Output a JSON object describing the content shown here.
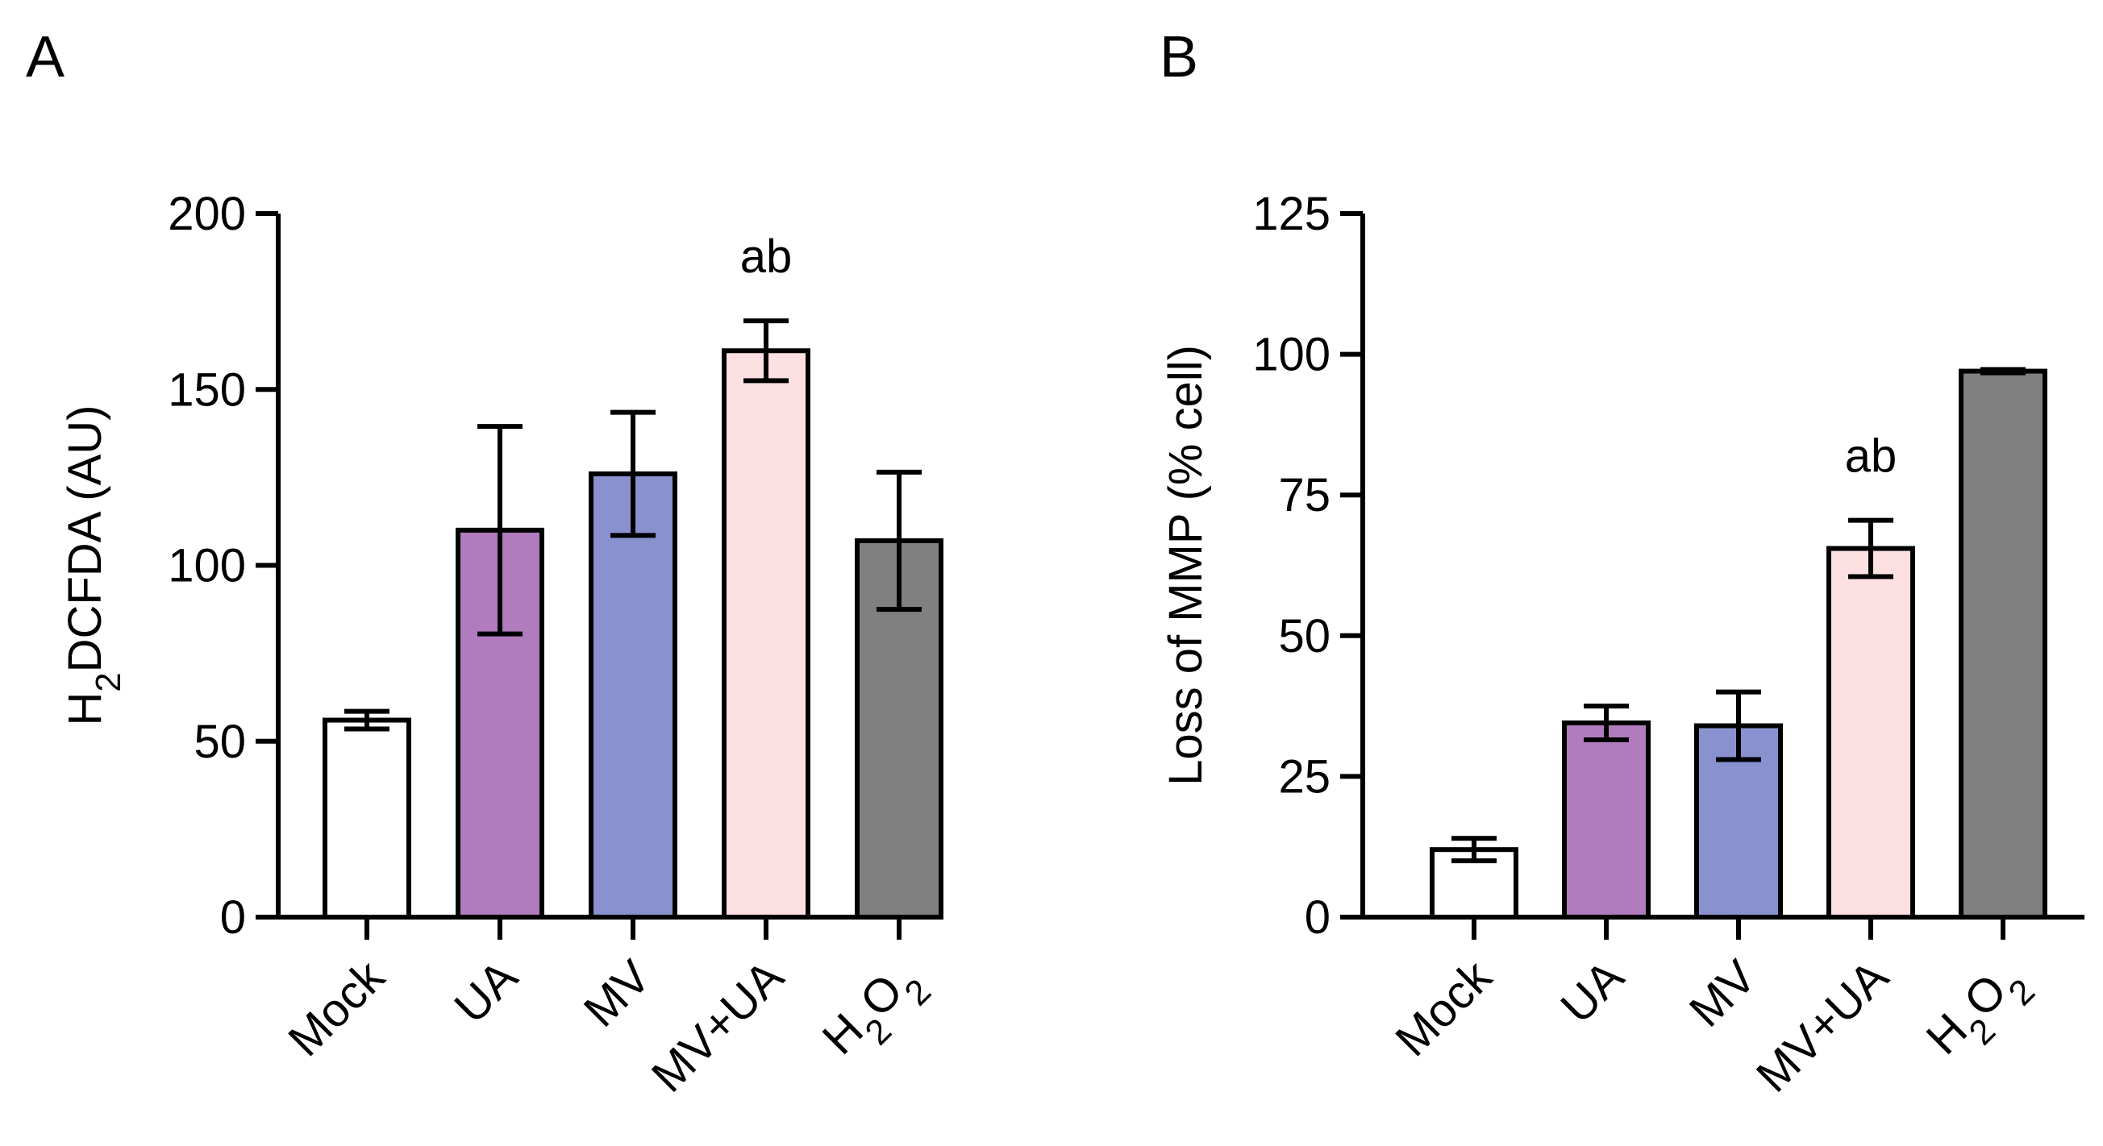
{
  "colors": {
    "axis": "#000000",
    "bar_edge": "#000000"
  },
  "chart_data": [
    {
      "panel_label": "A",
      "type": "bar",
      "categories": [
        "Mock",
        "UA",
        "MV",
        "MV+UA",
        "H2O2"
      ],
      "ylabel": "H2DCFDA (AU)",
      "ylim": [
        0,
        200
      ],
      "yticks": [
        0,
        50,
        100,
        150,
        200
      ],
      "values": [
        56,
        110,
        126,
        161,
        107
      ],
      "errors": [
        2.5,
        29.5,
        17.5,
        8.5,
        19.5
      ],
      "bar_colors": [
        "#ffffff",
        "#b07cbd",
        "#8a91cf",
        "#fde0e2",
        "#808080"
      ],
      "annotations": [
        {
          "category": "MV+UA",
          "text": "ab"
        }
      ]
    },
    {
      "panel_label": "B",
      "type": "bar",
      "categories": [
        "Mock",
        "UA",
        "MV",
        "MV+UA",
        "H2O2"
      ],
      "ylabel": "Loss of MMP (% cell)",
      "ylim": [
        0,
        125
      ],
      "yticks": [
        0,
        25,
        50,
        75,
        100,
        125
      ],
      "values": [
        12,
        34.5,
        34,
        65.5,
        97
      ],
      "errors": [
        2,
        3,
        6,
        5,
        0.3
      ],
      "bar_colors": [
        "#ffffff",
        "#b07cbd",
        "#8a91cf",
        "#fde0e2",
        "#808080"
      ],
      "annotations": [
        {
          "category": "MV+UA",
          "text": "ab"
        }
      ]
    }
  ]
}
